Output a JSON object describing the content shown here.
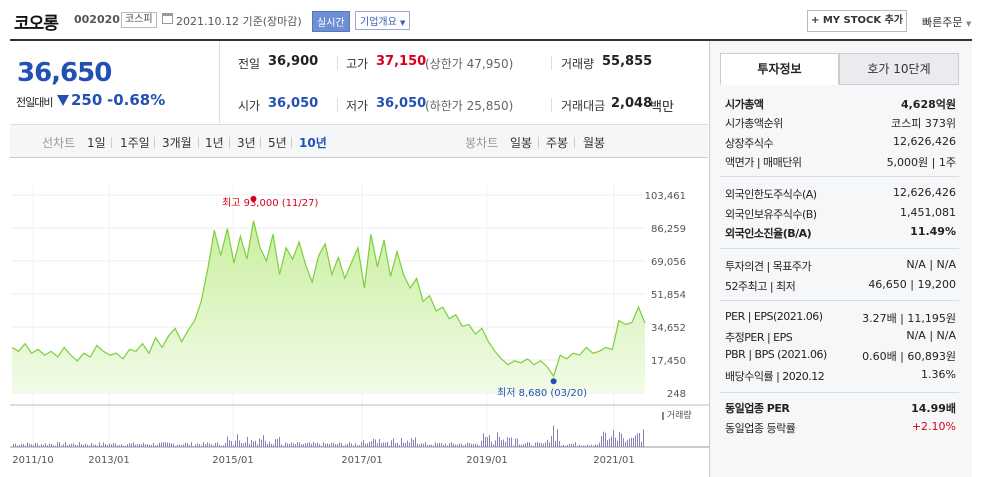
{
  "header": {
    "name": "코오롱",
    "code": "002020",
    "market": "코스피",
    "date": "2021.10.12 기준(장마감)",
    "realtime": "실시간",
    "company": "기업개요",
    "mystock": "+ MY STOCK 추가",
    "quick": "빠른주문"
  },
  "price": {
    "current": "36,650",
    "change_label": "전일대비",
    "change": "250",
    "change_pct": "-0.68%"
  },
  "info": {
    "prev_lbl": "전일",
    "prev": "36,900",
    "high_lbl": "고가",
    "high": "37,150",
    "upper": "(상한가 47,950)",
    "vol_lbl": "거래량",
    "vol": "55,855",
    "open_lbl": "시가",
    "open": "36,050",
    "low_lbl": "저가",
    "low": "36,050",
    "lower": "(하한가 25,850)",
    "amt_lbl": "거래대금",
    "amt": "2,048",
    "amt_unit": "백만"
  },
  "periods": {
    "line_label": "선차트",
    "items": [
      "1일",
      "1주일",
      "3개월",
      "1년",
      "3년",
      "5년",
      "10년"
    ],
    "candle_label": "봉차트",
    "candles": [
      "일봉",
      "주봉",
      "월봉"
    ]
  },
  "chart_data": {
    "type": "area",
    "x_ticks": [
      "2011/10",
      "2013/01",
      "2015/01",
      "2017/01",
      "2019/01",
      "2021/01"
    ],
    "y_ticks": [
      "103,461",
      "86,259",
      "69,056",
      "51,854",
      "34,652",
      "17,450",
      "248"
    ],
    "ylim": [
      248,
      103461
    ],
    "high_label": "최고 93,000 (11/27)",
    "low_label": "최저 8,680 (03/20)",
    "volume_label": "거래량",
    "series": [
      {
        "values": [
          24000,
          22000,
          26000,
          21000,
          23000,
          20000,
          22000,
          19000,
          24000,
          20000,
          17000,
          21000,
          19000,
          25000,
          22000,
          20000,
          21000,
          18000,
          23000,
          22000,
          26000,
          21000,
          29000,
          24000,
          30000,
          34000,
          27000,
          33000,
          38000,
          48000,
          65000,
          85000,
          72000,
          86000,
          68000,
          82000,
          70000,
          90000,
          76000,
          69000,
          83000,
          62000,
          76000,
          70000,
          79000,
          67000,
          58000,
          72000,
          78000,
          62000,
          71000,
          60000,
          68000,
          76000,
          55000,
          83000,
          66000,
          80000,
          61000,
          74000,
          62000,
          55000,
          60000,
          48000,
          51000,
          43000,
          45000,
          39000,
          41000,
          35000,
          36000,
          31000,
          34000,
          27000,
          22000,
          18000,
          15000,
          17000,
          16000,
          18000,
          15000,
          17000,
          14000,
          9000,
          20000,
          18000,
          21000,
          20000,
          24000,
          21000,
          22000,
          24000,
          23000,
          38000,
          36000,
          37000,
          45000,
          36650
        ]
      }
    ]
  },
  "panel": {
    "tab1": "투자정보",
    "tab2": "호가 10단계",
    "rows": [
      {
        "label": "시가총액",
        "value": "4,628억원",
        "bold": true
      },
      {
        "label": "시가총액순위",
        "value": "코스피 373위"
      },
      {
        "label": "상장주식수",
        "value": "12,626,426"
      },
      {
        "label": "액면가 | 매매단위",
        "value": "5,000원 | 1주"
      },
      {
        "label": "외국인한도주식수(A)",
        "value": "12,626,426"
      },
      {
        "label": "외국인보유주식수(B)",
        "value": "1,451,081"
      },
      {
        "label": "외국인소진율(B/A)",
        "value": "11.49%",
        "bold": true
      },
      {
        "label": "투자의견 | 목표주가",
        "value": "N/A | N/A"
      },
      {
        "label": "52주최고 | 최저",
        "value": "46,650 | 19,200"
      },
      {
        "label": "PER | EPS(2021.06)",
        "value": "3.27배 | 11,195원"
      },
      {
        "label": "추정PER | EPS",
        "value": "N/A | N/A"
      },
      {
        "label": "PBR | BPS (2021.06)",
        "value": "0.60배 | 60,893원"
      },
      {
        "label": "배당수익률 | 2020.12",
        "value": "1.36%"
      },
      {
        "label": "동일업종 PER",
        "value": "14.99배",
        "bold": true
      },
      {
        "label": "동일업종 등락률",
        "value": "+2.10%",
        "red": true
      }
    ]
  }
}
